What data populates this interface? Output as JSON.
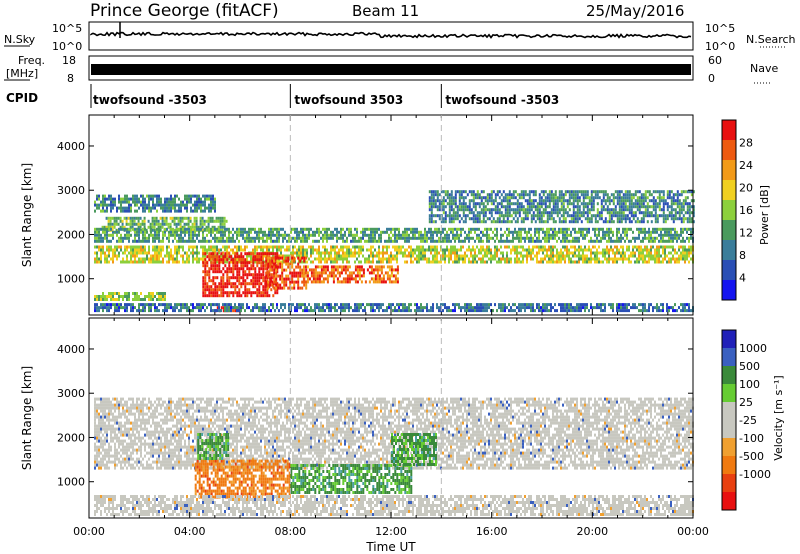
{
  "header": {
    "title": "Prince George (fitACF)",
    "beam": "Beam 11",
    "date": "25/May/2016"
  },
  "noise_panel": {
    "left_label": "N.Sky",
    "right_label": "N.Search",
    "left_ticks": [
      "10^5",
      "10^0"
    ],
    "right_ticks": [
      "10^5",
      "10^0"
    ]
  },
  "freq_panel": {
    "left_label_1": "Freq.",
    "left_label_2": "[MHz]",
    "right_label": "Nave",
    "left_ticks": [
      "18",
      "8"
    ],
    "right_ticks": [
      "60",
      "0"
    ]
  },
  "cpid": {
    "label": "CPID",
    "segments": [
      {
        "start_hours": 0.0,
        "label": "twofsound -3503"
      },
      {
        "start_hours": 8.0,
        "label": "twofsound 3503"
      },
      {
        "start_hours": 14.0,
        "label": "twofsound -3503"
      }
    ]
  },
  "colors": {
    "power_scale": [
      "#1414f0",
      "#2a4fb5",
      "#3a7d9a",
      "#4a9a5e",
      "#8ccf3c",
      "#f0d020",
      "#f29a18",
      "#ee5a10",
      "#e81010"
    ],
    "velocity_scale": [
      "#2020b8",
      "#3a60c0",
      "#3a8a3a",
      "#66cc33",
      "#c8c8c0",
      "#c8c8c0",
      "#f0a030",
      "#f07a10",
      "#e84010",
      "#e81010"
    ]
  },
  "chart_data": [
    {
      "type": "heatmap",
      "panel": "power",
      "xlabel": "Time UT",
      "ylabel": "Slant Range [km]",
      "xlim_hours": [
        0,
        24
      ],
      "x_ticks": [
        "00:00",
        "04:00",
        "08:00",
        "12:00",
        "16:00",
        "20:00",
        "00:00"
      ],
      "ylim": [
        180,
        4700
      ],
      "y_ticks": [
        1000,
        2000,
        3000,
        4000
      ],
      "colorbar_label": "Power [dB]",
      "colorbar_ticks": [
        28,
        24,
        20,
        16,
        12,
        8,
        4
      ],
      "colorbar_range": [
        0,
        32
      ],
      "features": [
        {
          "t0": 0.2,
          "t1": 5.0,
          "r0": 2500,
          "r1": 2900,
          "level": 10
        },
        {
          "t0": 0.5,
          "t1": 5.5,
          "r0": 2100,
          "r1": 2400,
          "level": 14
        },
        {
          "t0": 0.2,
          "t1": 24.0,
          "r0": 1400,
          "r1": 1750,
          "level": 18
        },
        {
          "t0": 0.2,
          "t1": 24.0,
          "r0": 1850,
          "r1": 2150,
          "level": 12
        },
        {
          "t0": 0.2,
          "t1": 3.0,
          "r0": 500,
          "r1": 700,
          "level": 16
        },
        {
          "t0": 4.5,
          "t1": 7.5,
          "r0": 650,
          "r1": 1600,
          "level": 30
        },
        {
          "t0": 7.0,
          "t1": 8.6,
          "r0": 800,
          "r1": 1500,
          "level": 28
        },
        {
          "t0": 8.5,
          "t1": 12.3,
          "r0": 900,
          "r1": 1300,
          "level": 26
        },
        {
          "t0": 5.0,
          "t1": 6.0,
          "r0": 250,
          "r1": 380,
          "level": 30
        },
        {
          "t0": 13.5,
          "t1": 24.0,
          "r0": 2300,
          "r1": 3000,
          "level": 10
        },
        {
          "t0": 0.2,
          "t1": 24.0,
          "r0": 250,
          "r1": 450,
          "level": 8
        }
      ]
    },
    {
      "type": "heatmap",
      "panel": "velocity",
      "xlabel": "Time UT",
      "ylabel": "Slant Range [km]",
      "xlim_hours": [
        0,
        24
      ],
      "x_ticks": [
        "00:00",
        "04:00",
        "08:00",
        "12:00",
        "16:00",
        "20:00",
        "00:00"
      ],
      "ylim": [
        180,
        4700
      ],
      "y_ticks": [
        1000,
        2000,
        3000,
        4000
      ],
      "colorbar_label": "Velocity [m s⁻¹]",
      "colorbar_ticks": [
        "1000",
        "500",
        "100",
        "25",
        "-25",
        "-100",
        "-500",
        "-1000"
      ],
      "features": [
        {
          "t0": 0.2,
          "t1": 24.0,
          "r0": 1300,
          "r1": 2900,
          "class": "ground"
        },
        {
          "t0": 4.2,
          "t1": 8.0,
          "r0": 650,
          "r1": 1500,
          "class": "away"
        },
        {
          "t0": 4.3,
          "t1": 5.5,
          "r0": 1500,
          "r1": 2100,
          "class": "toward"
        },
        {
          "t0": 8.0,
          "t1": 12.8,
          "r0": 750,
          "r1": 1400,
          "class": "toward"
        },
        {
          "t0": 12.0,
          "t1": 13.8,
          "r0": 1400,
          "r1": 2100,
          "class": "toward"
        },
        {
          "t0": 0.2,
          "t1": 24.0,
          "r0": 250,
          "r1": 700,
          "class": "ground"
        }
      ]
    }
  ]
}
